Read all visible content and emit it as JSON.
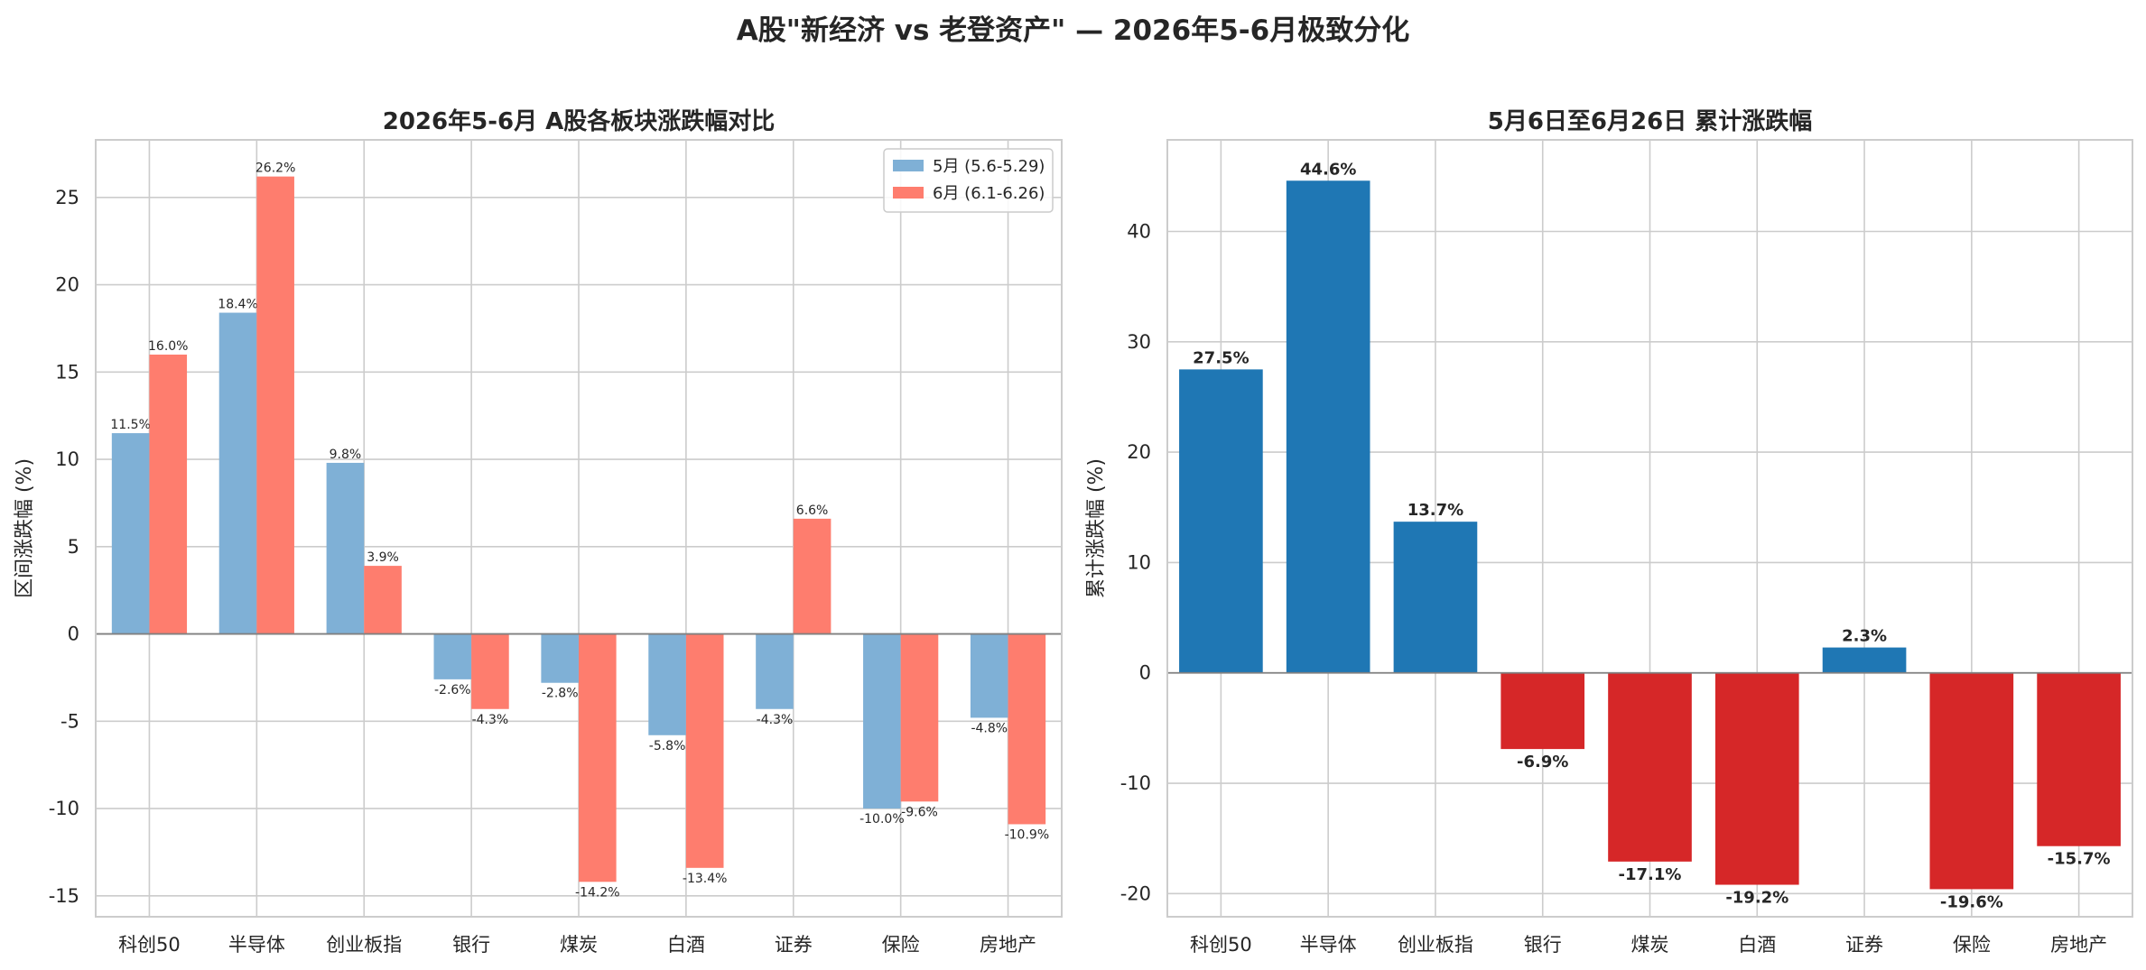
{
  "suptitle": "A股\"新经济 vs 老登资产\" — 2026年5-6月极致分化",
  "chart_data": [
    {
      "type": "bar",
      "title": "2026年5-6月 A股各板块涨跌幅对比",
      "xlabel": "",
      "ylabel": "区间涨跌幅 (%)",
      "categories": [
        "科创50",
        "半导体",
        "创业板指",
        "银行",
        "煤炭",
        "白酒",
        "证券",
        "保险",
        "房地产"
      ],
      "series": [
        {
          "name": "5月 (5.6-5.29)",
          "color": "#7fb0d6",
          "values": [
            11.5,
            18.4,
            9.8,
            -2.6,
            -2.8,
            -5.8,
            -4.3,
            -10.0,
            -4.8
          ]
        },
        {
          "name": "6月 (6.1-6.26)",
          "color": "#fe7d6e",
          "values": [
            16.0,
            26.2,
            3.9,
            -4.3,
            -14.2,
            -13.4,
            6.6,
            -9.6,
            -10.9
          ]
        }
      ],
      "ylim": [
        -16.2,
        28.3
      ],
      "yticks": [
        -15,
        -10,
        -5,
        0,
        5,
        10,
        15,
        20,
        25
      ],
      "grid": true,
      "legend": "top-right"
    },
    {
      "type": "bar",
      "title": "5月6日至6月26日 累计涨跌幅",
      "xlabel": "",
      "ylabel": "累计涨跌幅 (%)",
      "categories": [
        "科创50",
        "半导体",
        "创业板指",
        "银行",
        "煤炭",
        "白酒",
        "证券",
        "保险",
        "房地产"
      ],
      "values": [
        27.5,
        44.6,
        13.7,
        -6.9,
        -17.1,
        -19.2,
        2.3,
        -19.6,
        -15.7
      ],
      "colors": {
        "positive": "#1f77b4",
        "negative": "#d62728"
      },
      "ylim": [
        -22.1,
        48.3
      ],
      "yticks": [
        -20,
        -10,
        0,
        10,
        20,
        30,
        40
      ],
      "grid": true
    }
  ]
}
